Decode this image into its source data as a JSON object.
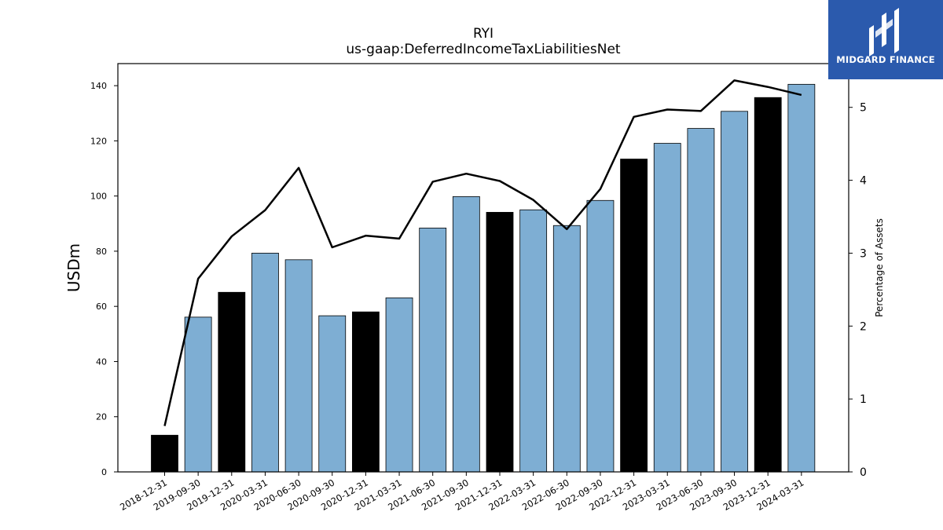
{
  "brand": {
    "name": "MIDGARD FINANCE",
    "bg_color": "#2b5aad"
  },
  "chart_data": {
    "type": "bar",
    "title": "RYI",
    "subtitle": "us-gaap:DeferredIncomeTaxLiabilitiesNet",
    "ylabel": "USDm",
    "y2label": "Percentage of Assets",
    "ylim": [
      0,
      148
    ],
    "y2lim": [
      0,
      5.6
    ],
    "yticks": [
      0,
      20,
      40,
      60,
      80,
      100,
      120,
      140
    ],
    "y2ticks": [
      0,
      1,
      2,
      3,
      4,
      5
    ],
    "categories": [
      "2018-12-31",
      "2019-09-30",
      "2019-12-31",
      "2020-03-31",
      "2020-06-30",
      "2020-09-30",
      "2020-12-31",
      "2021-03-31",
      "2021-06-30",
      "2021-09-30",
      "2021-12-31",
      "2022-03-31",
      "2022-06-30",
      "2022-09-30",
      "2022-12-31",
      "2023-03-31",
      "2023-06-30",
      "2023-09-30",
      "2023-12-31",
      "2024-03-31"
    ],
    "values": [
      13.3,
      56.1,
      65.1,
      79.3,
      76.9,
      56.6,
      58.0,
      63.1,
      88.4,
      99.8,
      94.1,
      95.0,
      89.3,
      98.4,
      113.4,
      119.1,
      124.5,
      130.7,
      135.7,
      140.5
    ],
    "bar_colors": [
      "#000000",
      "#7eaed3",
      "#000000",
      "#7eaed3",
      "#7eaed3",
      "#7eaed3",
      "#000000",
      "#7eaed3",
      "#7eaed3",
      "#7eaed3",
      "#000000",
      "#7eaed3",
      "#7eaed3",
      "#7eaed3",
      "#000000",
      "#7eaed3",
      "#7eaed3",
      "#7eaed3",
      "#000000",
      "#7eaed3"
    ],
    "line_series": {
      "axis": "right",
      "color": "#000000",
      "values": [
        0.63,
        2.65,
        3.23,
        3.59,
        4.17,
        3.08,
        3.24,
        3.2,
        3.98,
        4.09,
        3.99,
        3.73,
        3.33,
        3.88,
        4.87,
        4.97,
        4.95,
        5.37,
        5.28,
        5.17
      ]
    },
    "grid": false,
    "legend": "none"
  }
}
